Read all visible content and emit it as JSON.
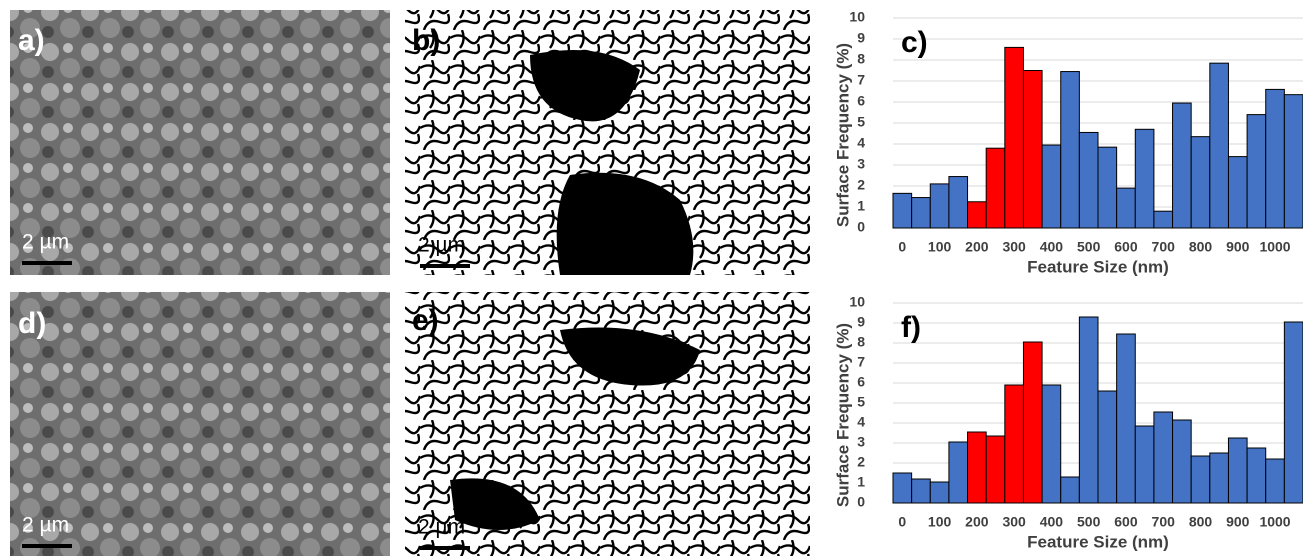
{
  "panels": [
    {
      "label": "a)",
      "scale_bar": "2 µm"
    },
    {
      "label": "b)",
      "scale_bar": "2 µm"
    },
    {
      "label": "d)",
      "scale_bar": "2 µm"
    },
    {
      "label": "e)",
      "scale_bar": "2 µm"
    }
  ],
  "chart_data": [
    {
      "type": "bar",
      "label": "c)",
      "x_label": "Feature Size (nm)",
      "y_label": "Surface Frequency (%)",
      "categories": [
        "0",
        null,
        "100",
        null,
        "200",
        null,
        "300",
        null,
        "400",
        null,
        "500",
        null,
        "600",
        null,
        "700",
        null,
        "800",
        null,
        "900",
        null,
        "1000",
        null
      ],
      "values": [
        1.65,
        1.45,
        2.1,
        2.45,
        1.25,
        3.8,
        8.6,
        7.5,
        3.95,
        7.45,
        4.55,
        3.85,
        1.9,
        4.7,
        0.8,
        5.95,
        4.35,
        7.85,
        3.4,
        5.4,
        6.6,
        6.35
      ],
      "colors": [
        "#4472c4",
        "#4472c4",
        "#4472c4",
        "#4472c4",
        "#ff0000",
        "#ff0000",
        "#ff0000",
        "#ff0000",
        "#4472c4",
        "#4472c4",
        "#4472c4",
        "#4472c4",
        "#4472c4",
        "#4472c4",
        "#4472c4",
        "#4472c4",
        "#4472c4",
        "#4472c4",
        "#4472c4",
        "#4472c4",
        "#4472c4",
        "#4472c4"
      ],
      "ylim": [
        0,
        10
      ],
      "yticks": [
        0,
        1,
        2,
        3,
        4,
        5,
        6,
        7,
        8,
        9,
        10
      ],
      "grid": true
    },
    {
      "type": "bar",
      "label": "f)",
      "x_label": "Feature Size (nm)",
      "y_label": "Surface Frequency (%)",
      "categories": [
        "0",
        null,
        "100",
        null,
        "200",
        null,
        "300",
        null,
        "400",
        null,
        "500",
        null,
        "600",
        null,
        "700",
        null,
        "800",
        null,
        "900",
        null,
        "1000",
        null
      ],
      "values": [
        1.5,
        1.2,
        1.05,
        3.05,
        3.55,
        3.35,
        5.9,
        8.05,
        5.9,
        1.3,
        9.3,
        5.6,
        8.45,
        3.85,
        4.55,
        4.15,
        2.35,
        2.5,
        3.25,
        2.75,
        2.2,
        9.05
      ],
      "colors": [
        "#4472c4",
        "#4472c4",
        "#4472c4",
        "#4472c4",
        "#ff0000",
        "#ff0000",
        "#ff0000",
        "#ff0000",
        "#4472c4",
        "#4472c4",
        "#4472c4",
        "#4472c4",
        "#4472c4",
        "#4472c4",
        "#4472c4",
        "#4472c4",
        "#4472c4",
        "#4472c4",
        "#4472c4",
        "#4472c4",
        "#4472c4",
        "#4472c4"
      ],
      "ylim": [
        0,
        10
      ],
      "yticks": [
        0,
        1,
        2,
        3,
        4,
        5,
        6,
        7,
        8,
        9,
        10
      ],
      "grid": true
    }
  ]
}
